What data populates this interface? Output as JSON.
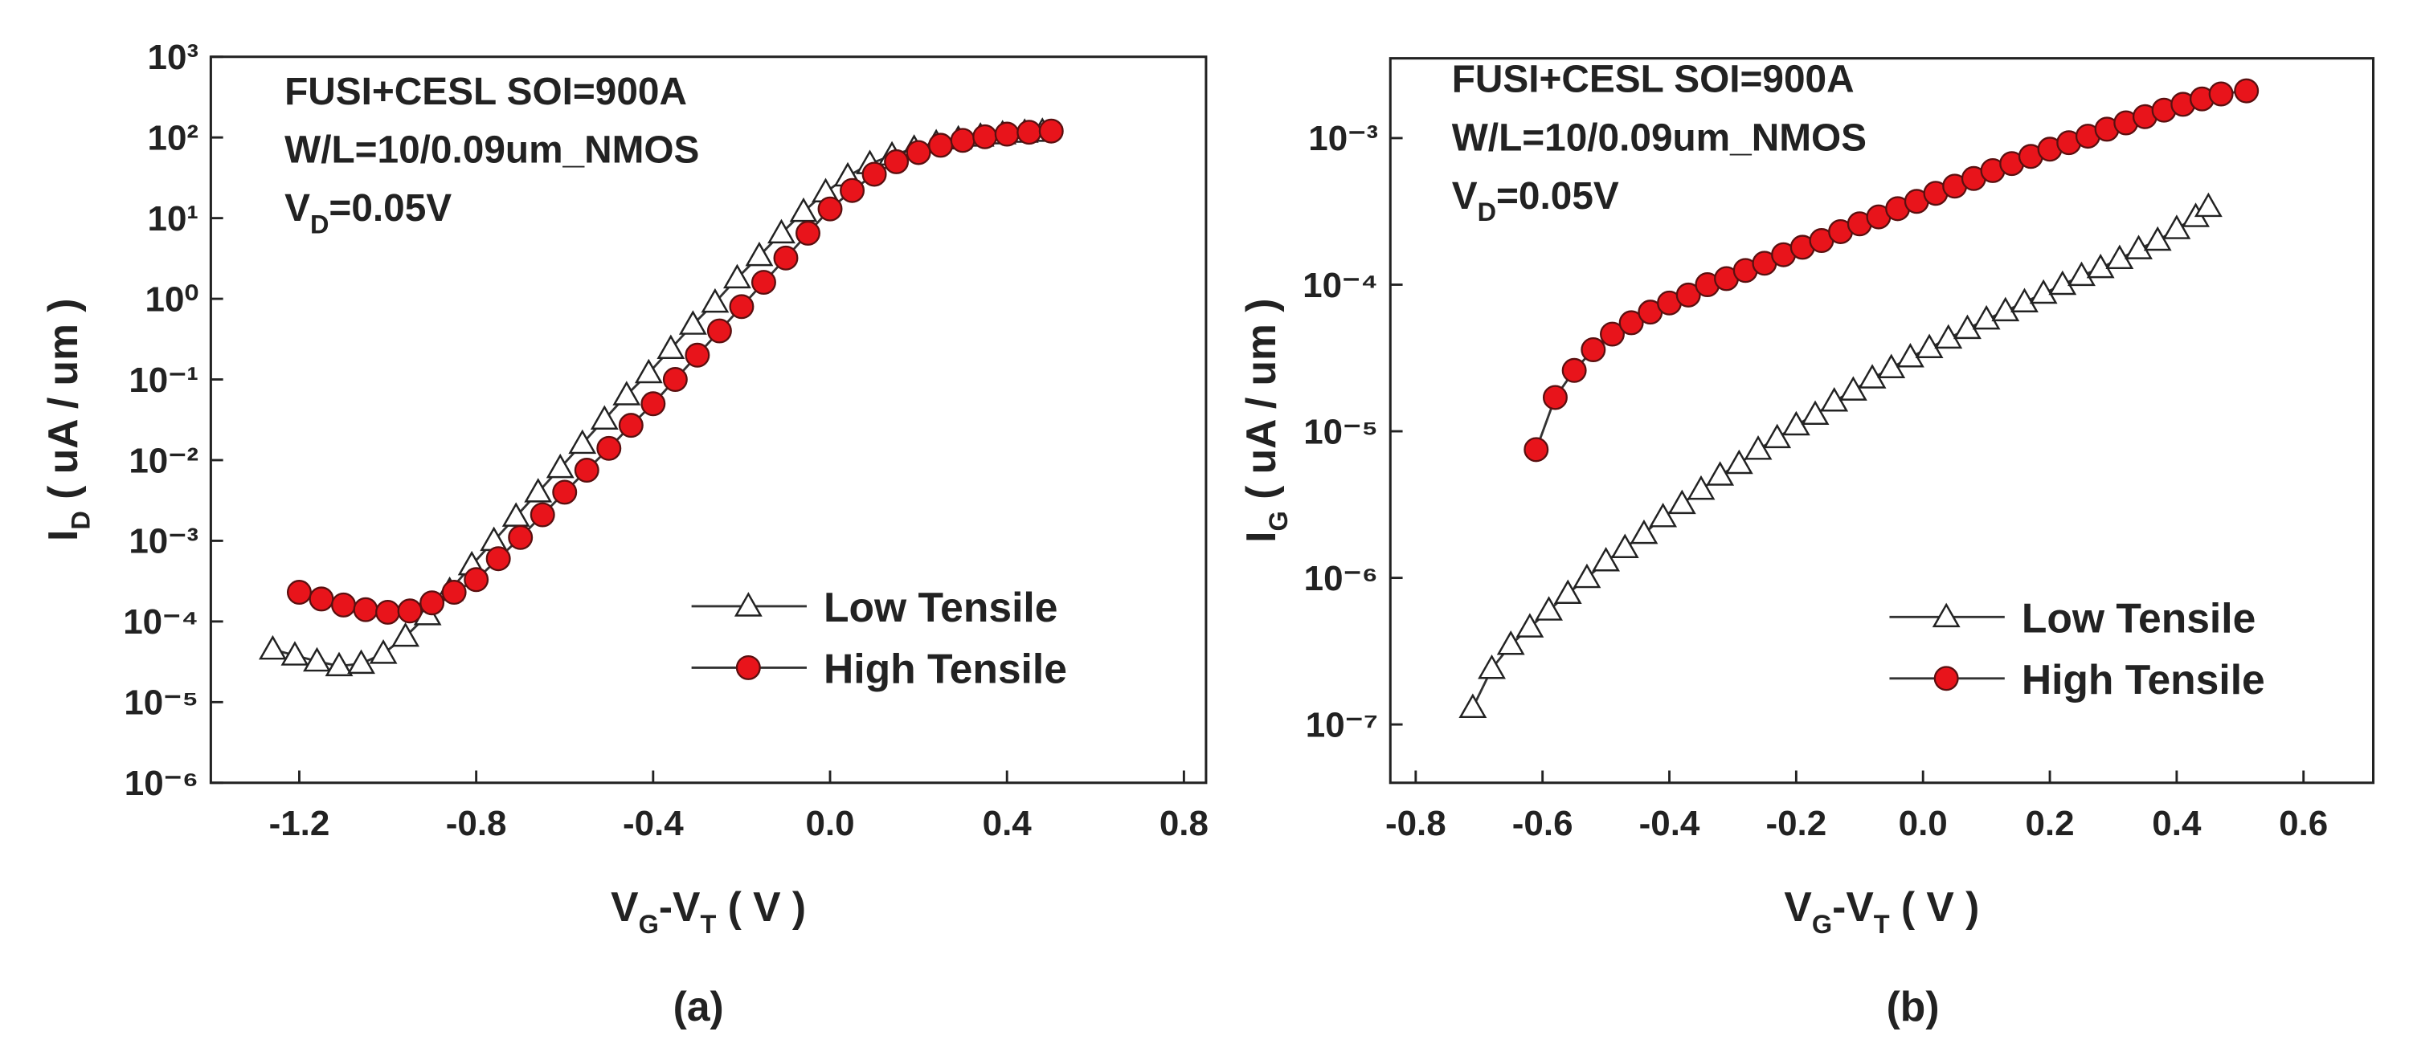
{
  "chart_data": [
    {
      "type": "line",
      "panel_label": "(a)",
      "annotations": [
        [
          "FUSI+CESL SOI=900A"
        ],
        [
          "W/L=10/0.09um_NMOS"
        ],
        [
          "V",
          "D",
          "=0.05V"
        ]
      ],
      "xlabel": [
        "V",
        "G",
        "-V",
        "T",
        " ( V )"
      ],
      "ylabel": [
        "I",
        "D",
        " ( uA / um )"
      ],
      "xlim": [
        -1.4,
        0.85
      ],
      "xticks": [
        -1.2,
        -0.8,
        -0.4,
        {
          "value": 0,
          "label": "0.0"
        },
        0.4,
        0.8
      ],
      "yscale": "log",
      "ylim": [
        1e-06,
        1000
      ],
      "yticks": [
        {
          "value": 1e-06,
          "label": "10⁻⁶"
        },
        {
          "value": 1e-05,
          "label": "10⁻⁵"
        },
        {
          "value": 0.0001,
          "label": "10⁻⁴"
        },
        {
          "value": 0.001,
          "label": "10⁻³"
        },
        {
          "value": 0.01,
          "label": "10⁻²"
        },
        {
          "value": 0.1,
          "label": "10⁻¹"
        },
        {
          "value": 1,
          "label": "10⁰"
        },
        {
          "value": 10,
          "label": "10¹"
        },
        {
          "value": 100,
          "label": "10²"
        },
        {
          "value": 1000,
          "label": "10³"
        }
      ],
      "series": [
        {
          "name": "Low Tensile",
          "marker": "triangle",
          "color": "#ffffff",
          "line_color": "#333333",
          "x": [
            -1.26,
            -1.21,
            -1.16,
            -1.11,
            -1.06,
            -1.01,
            -0.96,
            -0.91,
            -0.86,
            -0.81,
            -0.76,
            -0.71,
            -0.66,
            -0.61,
            -0.56,
            -0.51,
            -0.46,
            -0.41,
            -0.36,
            -0.31,
            -0.26,
            -0.21,
            -0.16,
            -0.11,
            -0.06,
            -0.01,
            0.04,
            0.09,
            0.14,
            0.19,
            0.24,
            0.29,
            0.34,
            0.39,
            0.44,
            0.48
          ],
          "values": [
            4.5e-05,
            3.8e-05,
            3.2e-05,
            2.8e-05,
            3e-05,
            4e-05,
            6.5e-05,
            0.00012,
            0.00024,
            0.0005,
            0.001,
            0.002,
            0.004,
            0.008,
            0.016,
            0.032,
            0.064,
            0.12,
            0.24,
            0.48,
            0.9,
            1.8,
            3.4,
            6.5,
            12,
            21,
            33,
            47,
            60,
            73,
            85,
            95,
            103,
            110,
            115,
            118
          ]
        },
        {
          "name": "High Tensile",
          "marker": "circle",
          "color": "#e8141b",
          "line_color": "#333333",
          "x": [
            -1.2,
            -1.15,
            -1.1,
            -1.05,
            -1.0,
            -0.95,
            -0.9,
            -0.85,
            -0.8,
            -0.75,
            -0.7,
            -0.65,
            -0.6,
            -0.55,
            -0.5,
            -0.45,
            -0.4,
            -0.35,
            -0.3,
            -0.25,
            -0.2,
            -0.15,
            -0.1,
            -0.05,
            0,
            0.05,
            0.1,
            0.15,
            0.2,
            0.25,
            0.3,
            0.35,
            0.4,
            0.45,
            0.5
          ],
          "values": [
            0.00023,
            0.00019,
            0.00016,
            0.00014,
            0.00013,
            0.000135,
            0.00017,
            0.00023,
            0.00033,
            0.0006,
            0.0011,
            0.0021,
            0.004,
            0.0075,
            0.014,
            0.027,
            0.05,
            0.1,
            0.2,
            0.4,
            0.8,
            1.6,
            3.2,
            6.5,
            13,
            22,
            35,
            50,
            65,
            80,
            92,
            102,
            110,
            116,
            120
          ]
        }
      ]
    },
    {
      "type": "line",
      "panel_label": "(b)",
      "annotations": [
        [
          "FUSI+CESL SOI=900A"
        ],
        [
          "W/L=10/0.09um_NMOS"
        ],
        [
          "V",
          "D",
          "=0.05V"
        ]
      ],
      "xlabel": [
        "V",
        "G",
        "-V",
        "T",
        " ( V )"
      ],
      "ylabel": [
        "I",
        "G",
        " ( uA / um )"
      ],
      "xlim": [
        -0.84,
        0.71
      ],
      "xticks": [
        -0.8,
        -0.6,
        -0.4,
        -0.2,
        {
          "value": 0,
          "label": "0.0"
        },
        0.2,
        0.4,
        0.6
      ],
      "yscale": "log",
      "ylim": [
        4e-08,
        0.0035
      ],
      "yticks": [
        {
          "value": 1e-07,
          "label": "10⁻⁷"
        },
        {
          "value": 1e-06,
          "label": "10⁻⁶"
        },
        {
          "value": 1e-05,
          "label": "10⁻⁵"
        },
        {
          "value": 0.0001,
          "label": "10⁻⁴"
        },
        {
          "value": 0.001,
          "label": "10⁻³"
        }
      ],
      "series": [
        {
          "name": "Low Tensile",
          "marker": "triangle",
          "color": "#ffffff",
          "line_color": "#333333",
          "x": [
            -0.71,
            -0.68,
            -0.65,
            -0.62,
            -0.59,
            -0.56,
            -0.53,
            -0.5,
            -0.47,
            -0.44,
            -0.41,
            -0.38,
            -0.35,
            -0.32,
            -0.29,
            -0.26,
            -0.23,
            -0.2,
            -0.17,
            -0.14,
            -0.11,
            -0.08,
            -0.05,
            -0.02,
            0.01,
            0.04,
            0.07,
            0.1,
            0.13,
            0.16,
            0.19,
            0.22,
            0.25,
            0.28,
            0.31,
            0.34,
            0.37,
            0.4,
            0.43,
            0.45
          ],
          "values": [
            1.3e-07,
            2.4e-07,
            3.5e-07,
            4.6e-07,
            6e-07,
            7.8e-07,
            1e-06,
            1.3e-06,
            1.6e-06,
            2e-06,
            2.6e-06,
            3.2e-06,
            4e-06,
            5e-06,
            6e-06,
            7.5e-06,
            9e-06,
            1.1e-05,
            1.3e-05,
            1.6e-05,
            1.9e-05,
            2.3e-05,
            2.7e-05,
            3.2e-05,
            3.7e-05,
            4.3e-05,
            5e-05,
            5.8e-05,
            6.6e-05,
            7.6e-05,
            8.7e-05,
            0.0001,
            0.000115,
            0.00013,
            0.00015,
            0.000175,
            0.0002,
            0.00024,
            0.00029,
            0.00034
          ]
        },
        {
          "name": "High Tensile",
          "marker": "circle",
          "color": "#e8141b",
          "line_color": "#333333",
          "x": [
            -0.61,
            -0.58,
            -0.55,
            -0.52,
            -0.49,
            -0.46,
            -0.43,
            -0.4,
            -0.37,
            -0.34,
            -0.31,
            -0.28,
            -0.25,
            -0.22,
            -0.19,
            -0.16,
            -0.13,
            -0.1,
            -0.07,
            -0.04,
            -0.01,
            0.02,
            0.05,
            0.08,
            0.11,
            0.14,
            0.17,
            0.2,
            0.23,
            0.26,
            0.29,
            0.32,
            0.35,
            0.38,
            0.41,
            0.44,
            0.47,
            0.51
          ],
          "values": [
            7.5e-06,
            1.7e-05,
            2.6e-05,
            3.6e-05,
            4.6e-05,
            5.5e-05,
            6.5e-05,
            7.5e-05,
            8.5e-05,
            0.0001,
            0.00011,
            0.000125,
            0.00014,
            0.00016,
            0.00018,
            0.0002,
            0.00023,
            0.00026,
            0.00029,
            0.00033,
            0.00037,
            0.00042,
            0.00047,
            0.00053,
            0.0006,
            0.00067,
            0.00075,
            0.00084,
            0.00093,
            0.00103,
            0.00115,
            0.00127,
            0.0014,
            0.00155,
            0.0017,
            0.00185,
            0.002,
            0.0021
          ]
        }
      ]
    }
  ]
}
